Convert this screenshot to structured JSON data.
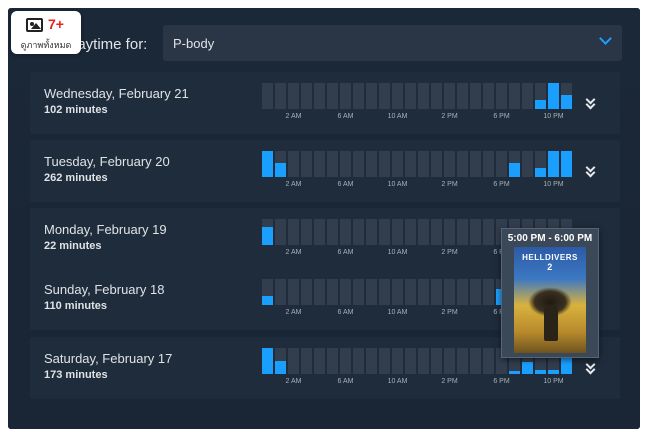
{
  "filter": {
    "label": "Playtime for:",
    "label_visible": "laytime for:",
    "selected": "P-body"
  },
  "badge": {
    "count": "7+",
    "text": "ดูภาพทั้งหมด",
    "icon": "image-icon"
  },
  "tick_labels": [
    "2 AM",
    "6 AM",
    "10 AM",
    "2 PM",
    "6 PM",
    "10 PM"
  ],
  "days": [
    {
      "name": "Wednesday, February 21",
      "minutes": "102 minutes",
      "levels": [
        0,
        0,
        0,
        0,
        0,
        0,
        0,
        0,
        0,
        0,
        0,
        0,
        0,
        0,
        0,
        0,
        0,
        0,
        0,
        0,
        0,
        0.35,
        1,
        0.55
      ]
    },
    {
      "name": "Tuesday, February 20",
      "minutes": "262 minutes",
      "levels": [
        1,
        0.55,
        0,
        0,
        0,
        0,
        0,
        0,
        0,
        0,
        0,
        0,
        0,
        0,
        0,
        0,
        0,
        0,
        0,
        0.55,
        0,
        0.35,
        1,
        1
      ]
    },
    {
      "name": "Monday, February 19",
      "minutes": "22 minutes",
      "levels": [
        0.7,
        0,
        0,
        0,
        0,
        0,
        0,
        0,
        0,
        0,
        0,
        0,
        0,
        0,
        0,
        0,
        0,
        0,
        0,
        0,
        0,
        0,
        0,
        0
      ]
    },
    {
      "name": "Sunday, February 18",
      "minutes": "110 minutes",
      "levels": [
        0.35,
        0,
        0,
        0,
        0,
        0,
        0,
        0,
        0,
        0,
        0,
        0,
        0,
        0,
        0,
        0,
        0,
        0,
        0.6,
        0,
        0,
        0,
        0,
        0
      ]
    },
    {
      "name": "Saturday, February 17",
      "minutes": "173 minutes",
      "levels": [
        1,
        0.5,
        0,
        0,
        0,
        0,
        0,
        0,
        0,
        0,
        0,
        0,
        0,
        0,
        0,
        0,
        0,
        0,
        0,
        0.1,
        0.45,
        0.15,
        0.15,
        0.6
      ]
    }
  ],
  "tooltip": {
    "title": "5:00 PM - 6:00 PM",
    "game_logo_top": "HELLDIVERS",
    "game_logo_num": "2"
  },
  "colors": {
    "accent": "#1a9fff",
    "bar_empty": "#323e4d",
    "row_bg": "#1f2c3b",
    "panel_bg": "#1b2838"
  }
}
